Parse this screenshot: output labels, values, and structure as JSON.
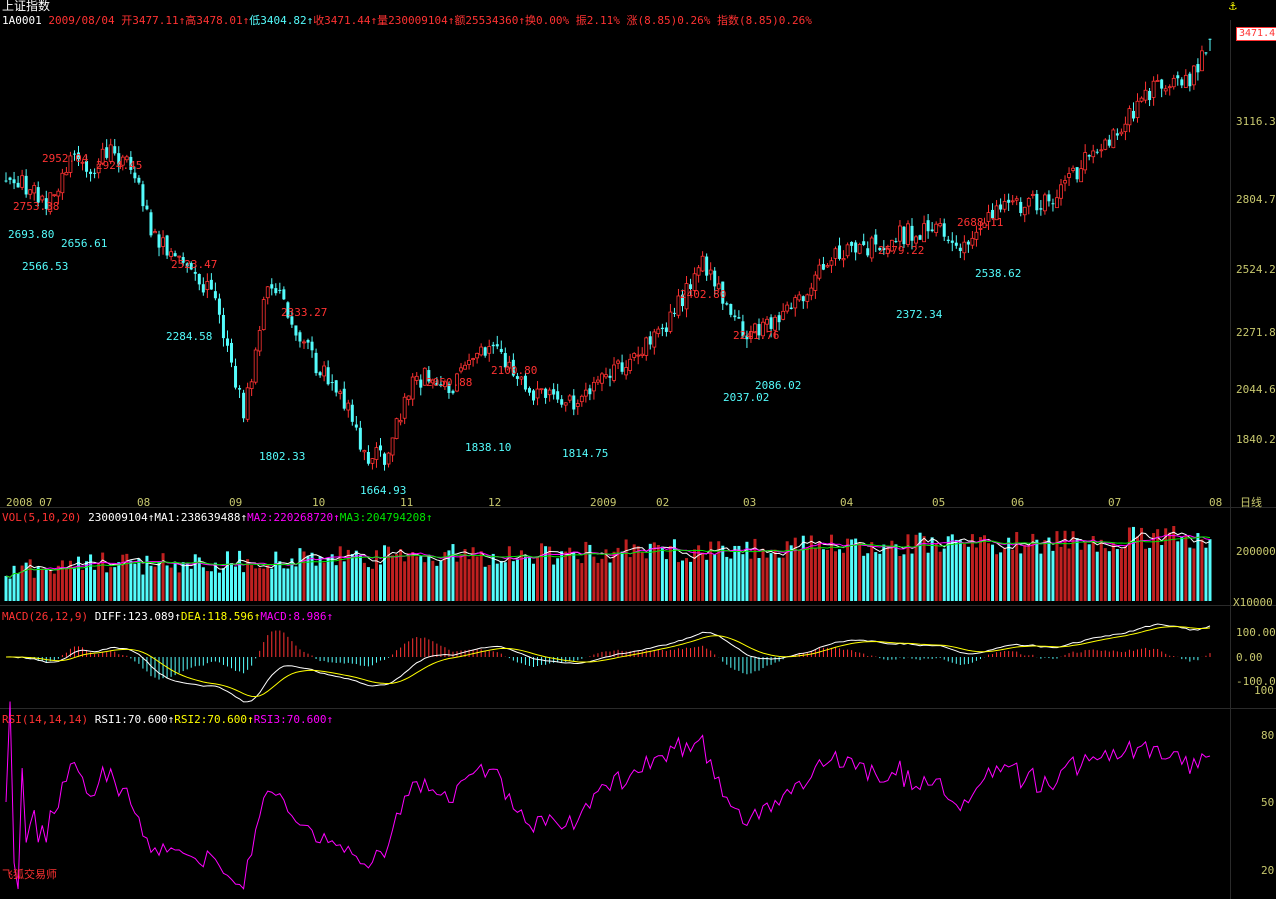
{
  "title": "上证指数",
  "info_bar": {
    "code": "1A0001",
    "date": "2009/08/04",
    "open": "开3477.11",
    "high": "高3478.01",
    "low": "低3404.82",
    "close": "收3471.44",
    "volume": "量230009104",
    "amount": "额25534360",
    "turnover": "换0.00%",
    "amplitude": "振2.11%",
    "change": "涨(8.85)0.26%",
    "index": "指数(8.85)0.26%",
    "arrow": "↑"
  },
  "anchor_icon": "anchor-icon",
  "price_axis": {
    "current_label": "3471.4",
    "ticks": [
      "3116.3",
      "2804.7",
      "2524.2",
      "2271.8",
      "2044.6",
      "1840.2"
    ]
  },
  "date_axis": {
    "labels": [
      "2008 07",
      "08",
      "09",
      "10",
      "11",
      "12",
      "2009",
      "02",
      "03",
      "04",
      "05",
      "06",
      "07",
      "08"
    ],
    "period": "日线"
  },
  "annotations": {
    "highs": [
      "2952.04",
      "2924.45",
      "2753.38",
      "2523.47",
      "2333.27",
      "2050.88",
      "2100.80",
      "2402.80",
      "2241.76",
      "2579.22",
      "2688.11"
    ],
    "lows": [
      "2693.80",
      "2656.61",
      "2566.53",
      "2284.58",
      "1802.33",
      "1664.93",
      "1838.10",
      "1814.75",
      "2037.02",
      "2086.02",
      "2372.34",
      "2538.62"
    ]
  },
  "volume_panel": {
    "name": "VOL(5,10,20)",
    "value": "230009104",
    "ma1": "MA1:238639488",
    "ma2": "MA2:220268720",
    "ma3": "MA3:204794208",
    "axis_top": "200000",
    "axis_unit": "X10000"
  },
  "macd_panel": {
    "name": "MACD(26,12,9)",
    "diff": "DIFF:123.089",
    "dea": "DEA:118.596",
    "macd": "MACD:8.986",
    "axis": [
      "100.00",
      "0.00",
      "-100.0",
      "100"
    ]
  },
  "rsi_panel": {
    "name": "RSI(14,14,14)",
    "rsi1": "RSI1:70.600",
    "rsi2": "RSI2:70.600",
    "rsi3": "RSI3:70.600",
    "axis": [
      "80",
      "50",
      "20"
    ]
  },
  "footer_brand": "飞狐交易师",
  "colors": {
    "up": "#FF3232",
    "down": "#54FCFC",
    "background": "#000000",
    "ma1": "#FFFFFF",
    "ma2": "#FF00FF",
    "ma3": "#00E600",
    "diff": "#FFFFFF",
    "dea": "#FFFF00",
    "rsi": "#FF00FF",
    "axis_text": "#C8C86E"
  },
  "chart_data": {
    "type": "candlestick",
    "title": "上证指数",
    "ylim": [
      1600,
      3530
    ],
    "y_scale": "log",
    "grid": false,
    "price_path": [
      {
        "date": "2008-07-01",
        "close": 2720
      },
      {
        "date": "2008-07-08",
        "close": 2700
      },
      {
        "date": "2008-07-15",
        "close": 2620
      },
      {
        "date": "2008-07-22",
        "close": 2830
      },
      {
        "date": "2008-07-29",
        "close": 2740
      },
      {
        "date": "2008-08-04",
        "close": 2870
      },
      {
        "date": "2008-08-12",
        "close": 2780
      },
      {
        "date": "2008-08-19",
        "close": 2470
      },
      {
        "date": "2008-08-26",
        "close": 2410
      },
      {
        "date": "2008-09-02",
        "close": 2320
      },
      {
        "date": "2008-09-09",
        "close": 2200
      },
      {
        "date": "2008-09-18",
        "close": 1820
      },
      {
        "date": "2008-09-26",
        "close": 2300
      },
      {
        "date": "2008-10-10",
        "close": 2010
      },
      {
        "date": "2008-10-20",
        "close": 1900
      },
      {
        "date": "2008-10-28",
        "close": 1700
      },
      {
        "date": "2008-11-04",
        "close": 1700
      },
      {
        "date": "2008-11-11",
        "close": 1900
      },
      {
        "date": "2008-11-18",
        "close": 1960
      },
      {
        "date": "2008-11-25",
        "close": 1900
      },
      {
        "date": "2008-12-04",
        "close": 2060
      },
      {
        "date": "2008-12-11",
        "close": 2020
      },
      {
        "date": "2008-12-22",
        "close": 1900
      },
      {
        "date": "2009-01-05",
        "close": 1860
      },
      {
        "date": "2009-01-15",
        "close": 1940
      },
      {
        "date": "2009-02-03",
        "close": 2090
      },
      {
        "date": "2009-02-17",
        "close": 2380
      },
      {
        "date": "2009-03-03",
        "close": 2090
      },
      {
        "date": "2009-03-17",
        "close": 2170
      },
      {
        "date": "2009-04-01",
        "close": 2380
      },
      {
        "date": "2009-04-20",
        "close": 2470
      },
      {
        "date": "2009-05-04",
        "close": 2510
      },
      {
        "date": "2009-05-15",
        "close": 2420
      },
      {
        "date": "2009-05-28",
        "close": 2620
      },
      {
        "date": "2009-06-10",
        "close": 2620
      },
      {
        "date": "2009-06-24",
        "close": 2820
      },
      {
        "date": "2009-07-08",
        "close": 3050
      },
      {
        "date": "2009-07-20",
        "close": 3240
      },
      {
        "date": "2009-07-29",
        "close": 3250
      },
      {
        "date": "2009-08-04",
        "close": 3471.44
      }
    ],
    "last_candle": {
      "date": "2009-08-04",
      "open": 3477.11,
      "high": 3478.01,
      "low": 3404.82,
      "close": 3471.44
    },
    "volume_ma": {
      "MA1": 238639488,
      "MA2": 220268720,
      "MA3": 204794208,
      "last": 230009104
    },
    "macd": {
      "DIFF": 123.089,
      "DEA": 118.596,
      "MACD": 8.986
    },
    "rsi": {
      "RSI1": 70.6,
      "RSI2": 70.6,
      "RSI3": 70.6,
      "range": [
        20,
        80
      ]
    }
  }
}
